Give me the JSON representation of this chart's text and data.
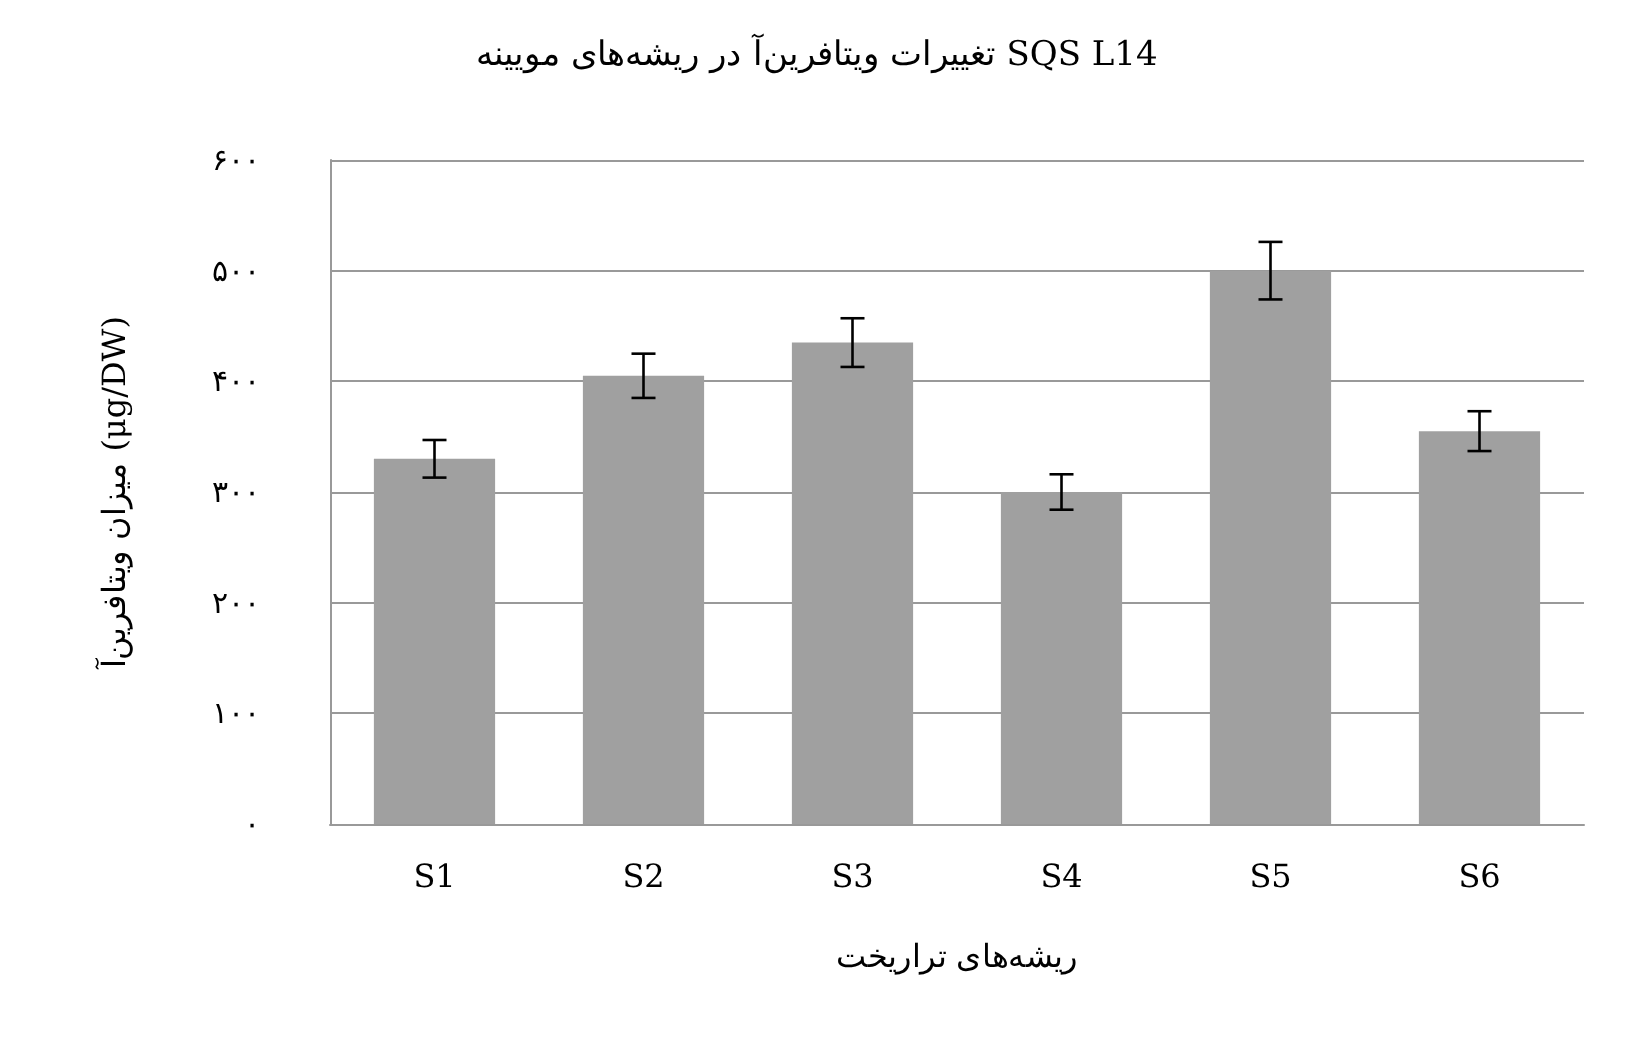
{
  "chart_data": {
    "type": "bar",
    "title": "تغییرات ویتافرین‌آ در ریشه‌های مویینه SQS L14",
    "xlabel": "ریشه‌های تراریخت",
    "ylabel": "میزان ویتافرین‌آ (μg/DW)",
    "categories": [
      "S1",
      "S2",
      "S3",
      "S4",
      "S5",
      "S6"
    ],
    "values": [
      330,
      405,
      435,
      300,
      500,
      355
    ],
    "errors": [
      17,
      20,
      22,
      16,
      26,
      18
    ],
    "color": "#a0a0a0",
    "ylim": [
      0,
      600
    ],
    "yticks": [
      {
        "value": 0,
        "label": "۰"
      },
      {
        "value": 100,
        "label": "۱۰۰"
      },
      {
        "value": 200,
        "label": "۲۰۰"
      },
      {
        "value": 300,
        "label": "۳۰۰"
      },
      {
        "value": 400,
        "label": "۴۰۰"
      },
      {
        "value": 500,
        "label": "۵۰۰"
      },
      {
        "value": 600,
        "label": "۶۰۰"
      }
    ],
    "grid": "y"
  }
}
